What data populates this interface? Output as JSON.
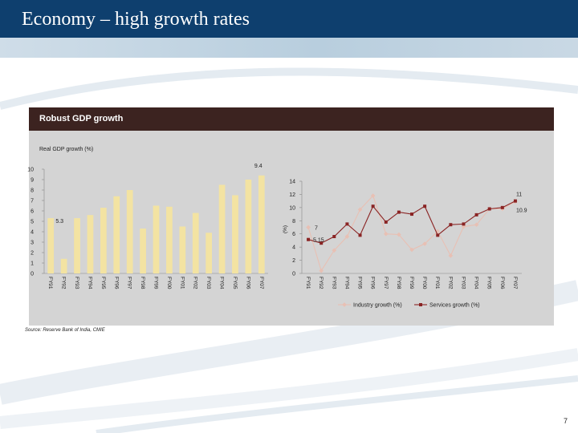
{
  "slide": {
    "title": "Economy – high growth rates",
    "panel_title": "Robust GDP growth",
    "source": "Source: Reserve Bank of India, CMIE",
    "page_number": "7"
  },
  "colors": {
    "title_bar": "#0e3f6e",
    "panel_header": "#3c2320",
    "panel_bg": "#d4d4d4",
    "bar": "#f3e3a2",
    "industry_line": "#e8c0b4",
    "services_line": "#8a2424"
  },
  "chart_data": [
    {
      "type": "bar",
      "title": "Real GDP growth (%)",
      "categories": [
        "FY91",
        "FY92",
        "FY93",
        "FY94",
        "FY95",
        "FY96",
        "FY97",
        "FY98",
        "FY99",
        "FY00",
        "FY01",
        "FY02",
        "FY03",
        "FY04",
        "FY05",
        "FY06",
        "FY07"
      ],
      "values": [
        5.3,
        1.4,
        5.3,
        5.6,
        6.3,
        7.4,
        8.0,
        4.3,
        6.5,
        6.4,
        4.5,
        5.8,
        3.9,
        8.5,
        7.5,
        9.0,
        9.4
      ],
      "data_labels": [
        {
          "index": 0,
          "text": "5.3"
        },
        {
          "index": 16,
          "text": "9.4"
        }
      ],
      "ylim": [
        0,
        10
      ],
      "yticks": [
        "0",
        "1",
        "2",
        "3",
        "4",
        "5",
        "6",
        "7",
        "8",
        "9",
        "10"
      ],
      "grid": false
    },
    {
      "type": "line",
      "ylabel": "(%)",
      "categories": [
        "FY91",
        "FY92",
        "FY93",
        "FY94",
        "FY95",
        "FY96",
        "FY97",
        "FY98",
        "FY99",
        "FY00",
        "FY01",
        "FY02",
        "FY03",
        "FY04",
        "FY05",
        "FY06",
        "FY07"
      ],
      "ylim": [
        0,
        14
      ],
      "yticks": [
        "0",
        "2",
        "4",
        "6",
        "8",
        "10",
        "12",
        "14"
      ],
      "series": [
        {
          "name": "Industry growth (%)",
          "values": [
            7.0,
            0.4,
            3.5,
            5.6,
            9.7,
            11.8,
            6.0,
            5.9,
            3.6,
            4.5,
            6.4,
            2.7,
            7.1,
            7.4,
            9.8,
            9.8,
            10.9
          ]
        },
        {
          "name": "Services growth (%)",
          "values": [
            5.15,
            4.6,
            5.6,
            7.5,
            5.8,
            10.2,
            7.8,
            9.3,
            9.0,
            10.2,
            5.8,
            7.4,
            7.5,
            8.9,
            9.8,
            10.0,
            11.0
          ]
        }
      ],
      "data_labels": [
        {
          "series": 0,
          "index": 0,
          "text": "7"
        },
        {
          "series": 1,
          "index": 0,
          "text": "5.15"
        },
        {
          "series": 1,
          "index": 16,
          "text": "11"
        },
        {
          "series": 0,
          "index": 16,
          "text": "10.9"
        }
      ],
      "legend": [
        "Industry growth (%)",
        "Services growth (%)"
      ],
      "legend_position": "bottom",
      "grid": false
    }
  ]
}
